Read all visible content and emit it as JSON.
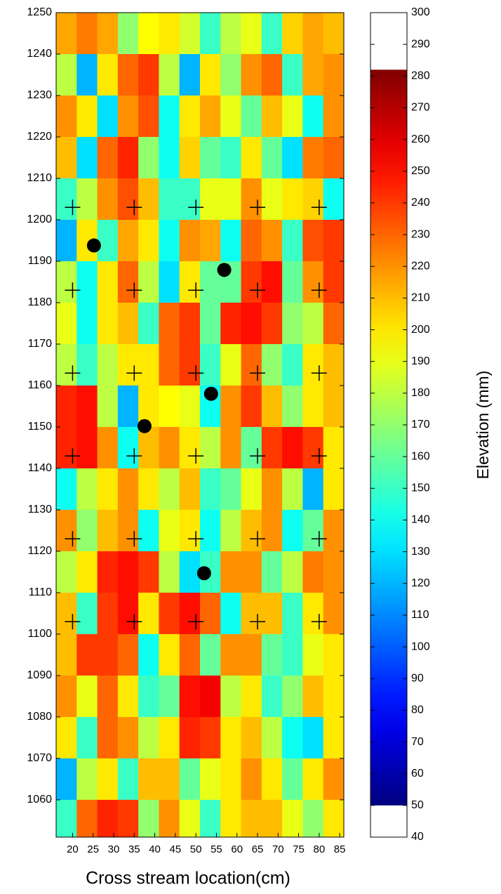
{
  "chart_data": {
    "type": "heatmap",
    "xlabel": "Cross stream location(cm)",
    "colorbar_label": "Elevation (mm)",
    "xlim": [
      16,
      86
    ],
    "ylim": [
      1051,
      1250
    ],
    "xticks": [
      20,
      25,
      30,
      35,
      40,
      45,
      50,
      55,
      60,
      65,
      70,
      75,
      80,
      85
    ],
    "yticks": [
      1060,
      1070,
      1080,
      1090,
      1100,
      1110,
      1120,
      1130,
      1140,
      1150,
      1160,
      1170,
      1180,
      1190,
      1200,
      1210,
      1220,
      1230,
      1240,
      1250
    ],
    "colorbar_lim": [
      40,
      300
    ],
    "color_range": [
      50,
      282
    ],
    "colorbar_ticks": [
      40,
      50,
      60,
      70,
      80,
      90,
      100,
      110,
      120,
      130,
      140,
      150,
      160,
      170,
      180,
      190,
      200,
      210,
      220,
      230,
      240,
      250,
      260,
      270,
      280,
      290,
      300
    ],
    "x": [
      18.5,
      23.5,
      28.5,
      33.5,
      38.5,
      43.5,
      48.5,
      53.5,
      58.5,
      63.5,
      68.5,
      73.5,
      78.5,
      83.5
    ],
    "y": [
      1245,
      1235,
      1225,
      1215,
      1205,
      1195,
      1185,
      1175,
      1165,
      1155,
      1145,
      1135,
      1125,
      1115,
      1105,
      1095,
      1085,
      1075,
      1065,
      1055
    ],
    "z": [
      [
        215,
        225,
        215,
        170,
        195,
        200,
        185,
        150,
        180,
        190,
        150,
        205,
        215,
        210
      ],
      [
        180,
        120,
        200,
        230,
        240,
        180,
        120,
        200,
        170,
        220,
        230,
        150,
        215,
        220
      ],
      [
        220,
        200,
        130,
        220,
        235,
        140,
        200,
        215,
        190,
        160,
        210,
        190,
        140,
        220
      ],
      [
        210,
        130,
        230,
        245,
        170,
        140,
        205,
        160,
        150,
        200,
        160,
        130,
        225,
        230
      ],
      [
        150,
        180,
        220,
        235,
        210,
        150,
        150,
        190,
        190,
        220,
        190,
        200,
        205,
        140
      ],
      [
        120,
        200,
        150,
        215,
        200,
        140,
        220,
        215,
        140,
        230,
        220,
        150,
        235,
        240
      ],
      [
        180,
        140,
        200,
        230,
        180,
        130,
        200,
        160,
        160,
        240,
        250,
        160,
        220,
        240
      ],
      [
        190,
        140,
        200,
        210,
        150,
        230,
        240,
        160,
        245,
        250,
        240,
        170,
        180,
        230
      ],
      [
        180,
        150,
        180,
        200,
        200,
        230,
        240,
        150,
        190,
        230,
        170,
        150,
        200,
        210
      ],
      [
        245,
        250,
        180,
        120,
        200,
        195,
        190,
        140,
        220,
        240,
        210,
        170,
        200,
        210
      ],
      [
        245,
        250,
        220,
        140,
        210,
        220,
        200,
        180,
        220,
        160,
        240,
        250,
        240,
        200
      ],
      [
        140,
        180,
        200,
        220,
        200,
        180,
        210,
        150,
        160,
        190,
        220,
        180,
        120,
        200
      ],
      [
        220,
        170,
        210,
        220,
        140,
        190,
        200,
        140,
        180,
        210,
        220,
        140,
        160,
        220
      ],
      [
        180,
        200,
        245,
        250,
        240,
        180,
        130,
        150,
        220,
        220,
        160,
        180,
        225,
        220
      ],
      [
        210,
        150,
        240,
        250,
        200,
        240,
        250,
        230,
        140,
        210,
        210,
        150,
        200,
        220
      ],
      [
        210,
        240,
        240,
        230,
        140,
        200,
        230,
        160,
        220,
        220,
        160,
        150,
        190,
        200
      ],
      [
        220,
        190,
        230,
        200,
        150,
        160,
        250,
        255,
        180,
        200,
        150,
        170,
        210,
        200
      ],
      [
        200,
        150,
        230,
        220,
        180,
        200,
        245,
        240,
        200,
        210,
        180,
        140,
        130,
        200
      ],
      [
        120,
        180,
        200,
        150,
        210,
        210,
        160,
        190,
        200,
        220,
        200,
        160,
        200,
        220
      ],
      [
        150,
        230,
        245,
        240,
        170,
        220,
        190,
        150,
        200,
        210,
        210,
        190,
        170,
        200
      ]
    ],
    "markers": [
      {
        "marker": "plus",
        "color": "#000000",
        "x": [
          20,
          35,
          50,
          65,
          80,
          20,
          35,
          50,
          65,
          80,
          20,
          35,
          50,
          65,
          80,
          20,
          35,
          50,
          65,
          80,
          20,
          35,
          50,
          65,
          80,
          20,
          35,
          50,
          65,
          80
        ],
        "y": [
          1203,
          1203,
          1203,
          1203,
          1203,
          1183,
          1183,
          1183,
          1183,
          1183,
          1163,
          1163,
          1163,
          1163,
          1163,
          1143,
          1143,
          1143,
          1143,
          1143,
          1123,
          1123,
          1123,
          1123,
          1123,
          1103,
          1103,
          1103,
          1103,
          1103
        ]
      },
      {
        "marker": "dot",
        "color": "#000000",
        "x": [
          25.2,
          56.9,
          53.7,
          37.5,
          52
        ],
        "y": [
          1193.8,
          1187.9,
          1158,
          1150.2,
          1114.7
        ]
      }
    ]
  }
}
